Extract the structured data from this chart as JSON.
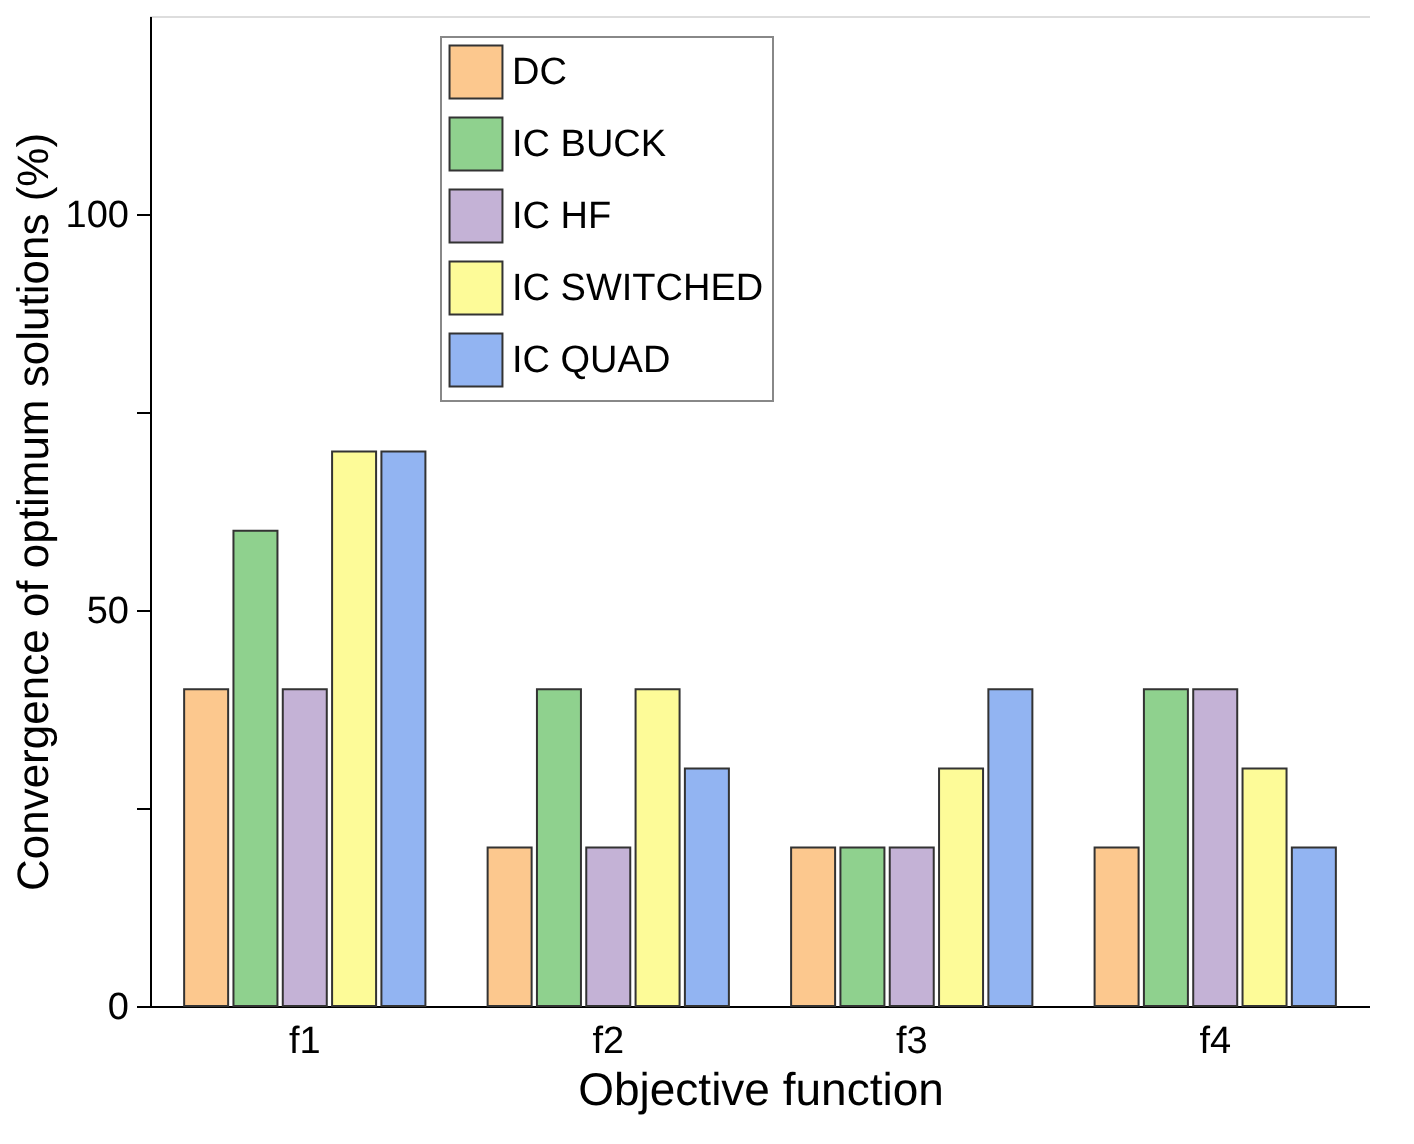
{
  "chart_data": {
    "type": "bar",
    "xlabel": "Objective function",
    "ylabel": "Convergence of optimum solutions (%)",
    "categories": [
      "f1",
      "f2",
      "f3",
      "f4"
    ],
    "series": [
      {
        "name": "DC",
        "color": "#fcc88e",
        "values": [
          40,
          20,
          20,
          20
        ]
      },
      {
        "name": "IC BUCK",
        "color": "#8fd18e",
        "values": [
          60,
          40,
          20,
          40
        ]
      },
      {
        "name": "IC HF",
        "color": "#c4b2d6",
        "values": [
          40,
          20,
          20,
          40
        ]
      },
      {
        "name": "IC SWITCHED",
        "color": "#fdfb98",
        "values": [
          70,
          40,
          30,
          30
        ]
      },
      {
        "name": "IC QUAD",
        "color": "#92b4f2",
        "values": [
          70,
          30,
          40,
          20
        ]
      }
    ],
    "ylim": [
      0,
      125
    ],
    "yticks": [
      0,
      {
        "value": 25,
        "label": null
      },
      50,
      {
        "value": 75,
        "label": null
      },
      100
    ],
    "grid": false,
    "legend": "top left"
  }
}
